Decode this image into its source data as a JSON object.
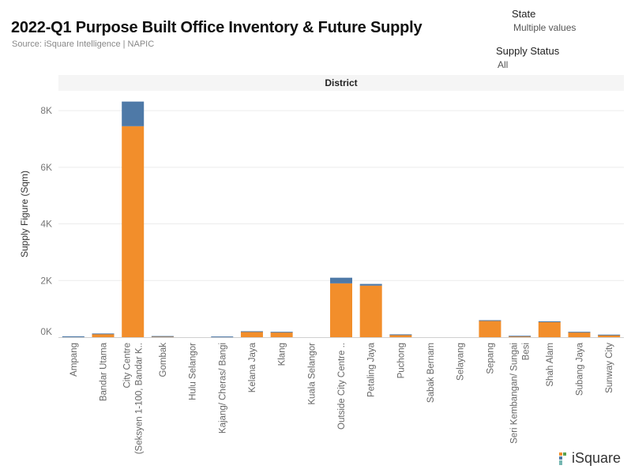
{
  "header": {
    "title": "2022-Q1 Purpose Built Office Inventory & Future Supply",
    "source": "Source: iSquare Intelligence | NAPIC"
  },
  "filters": {
    "state": {
      "label": "State",
      "value": "Multiple values"
    },
    "supply_status": {
      "label": "Supply Status",
      "value": "All"
    }
  },
  "logo": {
    "text": "iSquare"
  },
  "colors": {
    "existing": "#F28E2B",
    "future": "#4E79A7"
  },
  "chart_data": {
    "type": "bar",
    "stacked": true,
    "title": "",
    "column_header": "District",
    "xlabel": "",
    "ylabel": "Supply Figure (Sqm)",
    "ylim": [
      0,
      8700
    ],
    "yticks": [
      0,
      2000,
      4000,
      6000,
      8000
    ],
    "ytick_labels": [
      "0K",
      "2K",
      "4K",
      "6K",
      "8K"
    ],
    "grid": true,
    "categories": [
      "Ampang",
      "Bandar Utama",
      "City Centre (Seksyen 1-100, Bandar K..",
      "Gombak",
      "Hulu Selangor",
      "Kajang/ Cheras/ Bangi",
      "Kelana Jaya",
      "Klang",
      "Kuala Selangor",
      "Outside City Centre ..",
      "Petaling Jaya",
      "Puchong",
      "Sabak Bernam",
      "Selayang",
      "Sepang",
      "Seri Kembangan/ Sungai Besi",
      "Shah Alam",
      "Subang Jaya",
      "Sunway City"
    ],
    "category_lines": [
      [
        "Ampang"
      ],
      [
        "Bandar Utama"
      ],
      [
        "City Centre",
        "(Seksyen 1-100, Bandar K.."
      ],
      [
        "Gombak"
      ],
      [
        "Hulu Selangor"
      ],
      [
        "Kajang/ Cheras/ Bangi"
      ],
      [
        "Kelana Jaya"
      ],
      [
        "Klang"
      ],
      [
        "Kuala Selangor"
      ],
      [
        "Outside City Centre .."
      ],
      [
        "Petaling Jaya"
      ],
      [
        "Puchong"
      ],
      [
        "Sabak Bernam"
      ],
      [
        "Selayang"
      ],
      [
        "Sepang"
      ],
      [
        "Seri Kembangan/ Sungai",
        "Besi"
      ],
      [
        "Shah Alam"
      ],
      [
        "Subang Jaya"
      ],
      [
        "Sunway City"
      ]
    ],
    "series": [
      {
        "values": [
          0,
          120,
          7450,
          30,
          0,
          0,
          200,
          180,
          0,
          1900,
          1820,
          90,
          0,
          0,
          580,
          30,
          530,
          180,
          80
        ]
      },
      {
        "values": [
          30,
          10,
          870,
          10,
          0,
          25,
          10,
          10,
          0,
          200,
          60,
          10,
          0,
          0,
          20,
          20,
          30,
          10,
          10
        ]
      }
    ]
  }
}
